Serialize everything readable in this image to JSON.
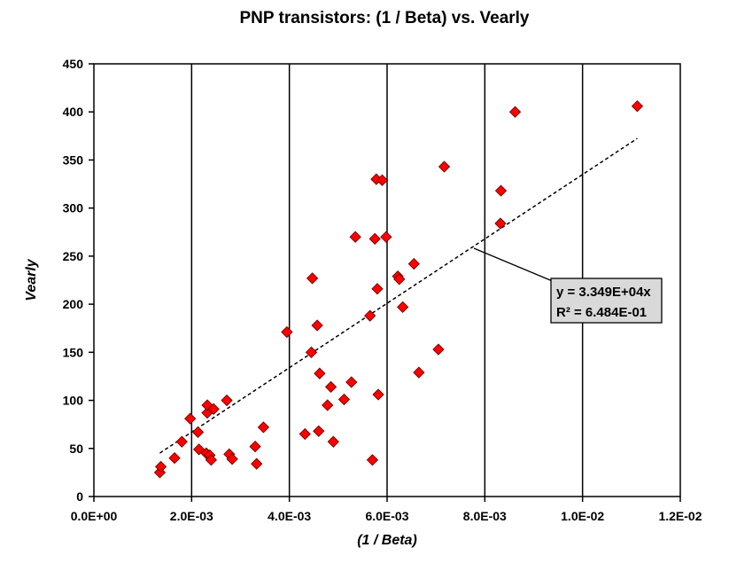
{
  "chart_data": {
    "type": "scatter",
    "title": "PNP transistors:  (1 / Beta)  vs.  Vearly",
    "xlabel": "(1 / Beta)",
    "ylabel": "Vearly",
    "xlim": [
      0,
      0.012
    ],
    "ylim": [
      0,
      450
    ],
    "x_ticks": [
      0,
      0.002,
      0.004,
      0.006,
      0.008,
      0.01,
      0.012
    ],
    "x_tick_labels": [
      "0.0E+00",
      "2.0E-03",
      "4.0E-03",
      "6.0E-03",
      "8.0E-03",
      "1.0E-02",
      "1.2E-02"
    ],
    "y_ticks": [
      0,
      50,
      100,
      150,
      200,
      250,
      300,
      350,
      400,
      450
    ],
    "y_tick_labels": [
      "0",
      "50",
      "100",
      "150",
      "200",
      "250",
      "300",
      "350",
      "400",
      "450"
    ],
    "grid": {
      "vertical": true,
      "horizontal": false
    },
    "legend": "none",
    "marker_color": "#ff0000",
    "trend_color": "#000000",
    "series": [
      {
        "points": [
          [
            0.00135,
            25
          ],
          [
            0.00137,
            31
          ],
          [
            0.00165,
            40
          ],
          [
            0.0018,
            57
          ],
          [
            0.00197,
            81
          ],
          [
            0.00213,
            67
          ],
          [
            0.00215,
            49
          ],
          [
            0.0023,
            45
          ],
          [
            0.00232,
            87
          ],
          [
            0.00232,
            95
          ],
          [
            0.00237,
            43
          ],
          [
            0.0024,
            38
          ],
          [
            0.00245,
            91
          ],
          [
            0.00272,
            100
          ],
          [
            0.00277,
            44
          ],
          [
            0.00283,
            39
          ],
          [
            0.0033,
            52
          ],
          [
            0.00333,
            34
          ],
          [
            0.00347,
            72
          ],
          [
            0.00395,
            171
          ],
          [
            0.00432,
            65
          ],
          [
            0.00445,
            150
          ],
          [
            0.00447,
            227
          ],
          [
            0.00457,
            178
          ],
          [
            0.0046,
            68
          ],
          [
            0.00462,
            128
          ],
          [
            0.00478,
            95
          ],
          [
            0.00485,
            114
          ],
          [
            0.0049,
            57
          ],
          [
            0.00512,
            101
          ],
          [
            0.00527,
            119
          ],
          [
            0.00535,
            270
          ],
          [
            0.00565,
            188
          ],
          [
            0.0057,
            38
          ],
          [
            0.00575,
            268
          ],
          [
            0.00578,
            330
          ],
          [
            0.0058,
            216
          ],
          [
            0.00582,
            106
          ],
          [
            0.0059,
            329
          ],
          [
            0.00598,
            270
          ],
          [
            0.00622,
            229
          ],
          [
            0.00625,
            226
          ],
          [
            0.00632,
            197
          ],
          [
            0.00655,
            242
          ],
          [
            0.00665,
            129
          ],
          [
            0.00705,
            153
          ],
          [
            0.00717,
            343
          ],
          [
            0.00832,
            284
          ],
          [
            0.00833,
            318
          ],
          [
            0.00862,
            400
          ],
          [
            0.01112,
            406
          ]
        ]
      }
    ],
    "trendline": {
      "slope": 33490,
      "x_range": [
        0.00135,
        0.01112
      ]
    },
    "annotation": {
      "equation": "y = 3.349E+04x",
      "r2": "R² = 6.484E-01"
    }
  }
}
